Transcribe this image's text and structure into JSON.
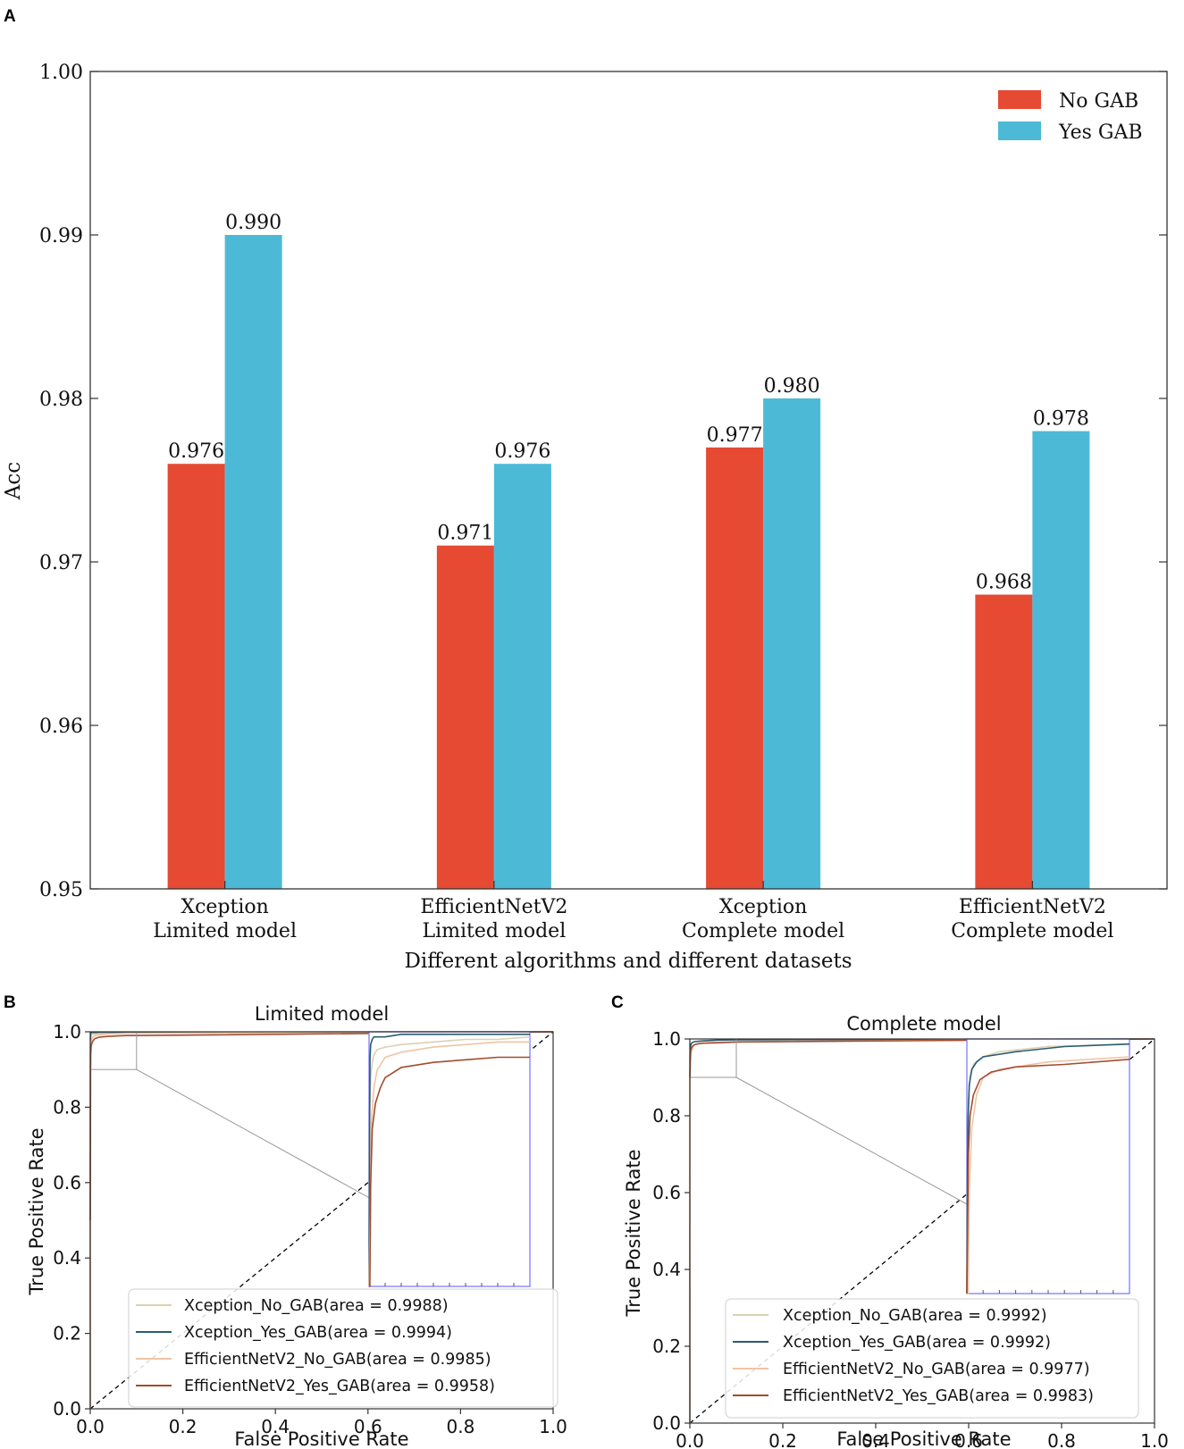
{
  "panels": {
    "a": "A",
    "b": "B",
    "c": "C"
  },
  "colors": {
    "no_gab": "#e64a33",
    "yes_gab": "#4cbad6",
    "xception_no": "#d9d2b4",
    "xception_yes": "#2b5b73",
    "effnet_no": "#f0c4a3",
    "effnet_yes": "#a34c2e",
    "zoom_box": "#7d7dff",
    "diag": "#000000"
  },
  "chart_data": [
    {
      "type": "bar",
      "title": "",
      "xlabel": "Different algorithms and different datasets",
      "ylabel": "Acc",
      "ylim": [
        0.95,
        1.0
      ],
      "yticks": [
        "0.95",
        "0.96",
        "0.97",
        "0.98",
        "0.99",
        "1.00"
      ],
      "categories": [
        [
          "Xception",
          "Limited model"
        ],
        [
          "EfficientNetV2",
          "Limited model"
        ],
        [
          "Xception",
          "Complete model"
        ],
        [
          "EfficientNetV2",
          "Complete model"
        ]
      ],
      "series": [
        {
          "name": "No GAB",
          "values": [
            0.976,
            0.971,
            0.977,
            0.968
          ],
          "labels": [
            "0.976",
            "0.971",
            "0.977",
            "0.968"
          ]
        },
        {
          "name": "Yes GAB",
          "values": [
            0.99,
            0.976,
            0.98,
            0.978
          ],
          "labels": [
            "0.990",
            "0.976",
            "0.980",
            "0.978"
          ]
        }
      ],
      "legend": "top-right"
    },
    {
      "type": "line",
      "title": "Limited model",
      "xlabel": "False Positive Rate",
      "ylabel": "True Positive Rate",
      "xlim": [
        0.0,
        1.0
      ],
      "ylim": [
        0.0,
        1.0
      ],
      "xticks": [
        "0.0",
        "0.2",
        "0.4",
        "0.6",
        "0.8",
        "1.0"
      ],
      "yticks": [
        "0.0",
        "0.2",
        "0.4",
        "0.6",
        "0.8",
        "1.0"
      ],
      "inset_region": {
        "x": [
          0.0,
          0.1
        ],
        "y": [
          0.9,
          1.0
        ]
      },
      "series": [
        {
          "name": "Xception_No_GAB(area = 0.9988)",
          "x": [
            0,
            0.0005,
            0.001,
            0.002,
            0.003,
            0.005,
            0.01,
            0.02,
            0.04,
            0.06,
            0.08,
            0.1,
            1.0
          ],
          "y": [
            0.0,
            0.97,
            0.982,
            0.988,
            0.991,
            0.993,
            0.994,
            0.995,
            0.996,
            0.997,
            0.997,
            0.998,
            1.0
          ]
        },
        {
          "name": "Xception_Yes_GAB(area = 0.9994)",
          "x": [
            0,
            0.0003,
            0.0006,
            0.001,
            0.002,
            0.003,
            0.005,
            0.01,
            0.02,
            0.05,
            0.1,
            1.0
          ],
          "y": [
            0.0,
            0.96,
            0.99,
            0.995,
            0.997,
            0.998,
            0.998,
            0.998,
            0.999,
            0.999,
            0.999,
            1.0
          ]
        },
        {
          "name": "EfficientNetV2_No_GAB(area = 0.9985)",
          "x": [
            0,
            0.0008,
            0.0015,
            0.003,
            0.005,
            0.01,
            0.02,
            0.04,
            0.06,
            0.08,
            0.1,
            1.0
          ],
          "y": [
            0.0,
            0.93,
            0.965,
            0.978,
            0.985,
            0.99,
            0.992,
            0.994,
            0.995,
            0.996,
            0.996,
            1.0
          ]
        },
        {
          "name": "EfficientNetV2_Yes_GAB(area = 0.9958)",
          "x": [
            0,
            0.0005,
            0.001,
            0.002,
            0.004,
            0.007,
            0.01,
            0.02,
            0.04,
            0.06,
            0.08,
            0.1,
            1.0
          ],
          "y": [
            0.5,
            0.9,
            0.94,
            0.962,
            0.972,
            0.978,
            0.982,
            0.986,
            0.988,
            0.989,
            0.99,
            0.99,
            1.0
          ]
        }
      ],
      "legend": "lower-right"
    },
    {
      "type": "line",
      "title": "Complete model",
      "xlabel": "False Positive Rate",
      "ylabel": "True Positive Rate",
      "xlim": [
        0.0,
        1.0
      ],
      "ylim": [
        0.0,
        1.0
      ],
      "xticks": [
        "0.0",
        "0.2",
        "0.4",
        "0.6",
        "0.8",
        "1.0"
      ],
      "yticks": [
        "0.0",
        "0.2",
        "0.4",
        "0.6",
        "0.8",
        "1.0"
      ],
      "inset_region": {
        "x": [
          0.0,
          0.1
        ],
        "y": [
          0.9,
          1.0
        ]
      },
      "series": [
        {
          "name": "Xception_No_GAB(area = 0.9992)",
          "x": [
            0,
            0.0005,
            0.001,
            0.002,
            0.004,
            0.01,
            0.02,
            0.05,
            0.1,
            1.0
          ],
          "y": [
            0.0,
            0.95,
            0.975,
            0.985,
            0.99,
            0.993,
            0.995,
            0.997,
            0.998,
            1.0
          ]
        },
        {
          "name": "Xception_Yes_GAB(area = 0.9992)",
          "x": [
            0,
            0.0004,
            0.0008,
            0.0015,
            0.003,
            0.006,
            0.01,
            0.03,
            0.06,
            0.1,
            1.0
          ],
          "y": [
            0.0,
            0.95,
            0.97,
            0.982,
            0.988,
            0.991,
            0.993,
            0.995,
            0.997,
            0.998,
            1.0
          ]
        },
        {
          "name": "EfficientNetV2_No_GAB(area = 0.9977)",
          "x": [
            0,
            0.0008,
            0.0015,
            0.003,
            0.006,
            0.01,
            0.02,
            0.05,
            0.1,
            1.0
          ],
          "y": [
            0.0,
            0.9,
            0.94,
            0.965,
            0.978,
            0.985,
            0.988,
            0.991,
            0.993,
            1.0
          ]
        },
        {
          "name": "EfficientNetV2_Yes_GAB(area = 0.9983)",
          "x": [
            0,
            0.0005,
            0.001,
            0.002,
            0.004,
            0.008,
            0.015,
            0.03,
            0.06,
            0.1,
            1.0
          ],
          "y": [
            0.9,
            0.93,
            0.955,
            0.97,
            0.978,
            0.984,
            0.987,
            0.989,
            0.99,
            0.992,
            1.0
          ]
        }
      ],
      "legend": "lower-right"
    }
  ]
}
